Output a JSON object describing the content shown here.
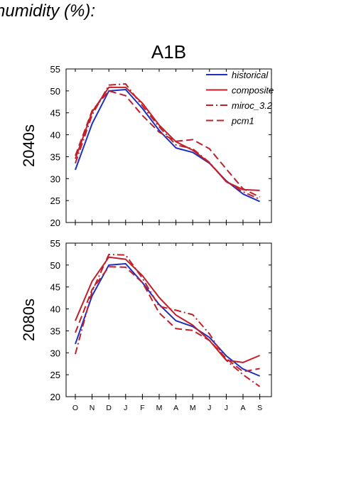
{
  "page": {
    "title": "humidity (%):"
  },
  "chart_data": [
    {
      "type": "line",
      "title": "A1B",
      "ylabel": "2040s",
      "xlabel": "",
      "categories": [
        "O",
        "N",
        "D",
        "J",
        "F",
        "M",
        "A",
        "M",
        "J",
        "J",
        "A",
        "S"
      ],
      "ylim": [
        20,
        55
      ],
      "yticks": [
        20,
        25,
        30,
        35,
        40,
        45,
        50,
        55
      ],
      "legend_position": "top-right",
      "series": [
        {
          "name": "historical",
          "color": "#1f2fbf",
          "dash": "solid",
          "values": [
            32.0,
            42.5,
            50.0,
            50.3,
            46.0,
            41.0,
            37.0,
            36.0,
            33.5,
            29.5,
            26.5,
            24.8
          ]
        },
        {
          "name": "composite",
          "color": "#c0202a",
          "dash": "solid",
          "values": [
            34.5,
            45.2,
            50.8,
            50.8,
            47.2,
            42.2,
            38.4,
            36.5,
            33.6,
            29.3,
            27.5,
            27.3
          ]
        },
        {
          "name": "miroc_3.2",
          "color": "#c0202a",
          "dash": "dashdot",
          "values": [
            33.5,
            44.5,
            51.3,
            51.6,
            46.6,
            41.8,
            37.7,
            36.8,
            33.7,
            29.3,
            27.0,
            25.3
          ]
        },
        {
          "name": "pcm1",
          "color": "#c0202a",
          "dash": "dash",
          "values": [
            35.2,
            45.5,
            50.0,
            48.9,
            44.4,
            40.6,
            38.5,
            38.9,
            36.8,
            32.2,
            27.7,
            25.8
          ]
        }
      ]
    },
    {
      "type": "line",
      "title": "",
      "ylabel": "2080s",
      "xlabel": "",
      "categories": [
        "O",
        "N",
        "D",
        "J",
        "F",
        "M",
        "A",
        "M",
        "J",
        "J",
        "A",
        "S"
      ],
      "ylim": [
        20,
        55
      ],
      "yticks": [
        20,
        25,
        30,
        35,
        40,
        45,
        50,
        55
      ],
      "series": [
        {
          "name": "historical",
          "color": "#1f2fbf",
          "dash": "solid",
          "values": [
            32.0,
            43.0,
            50.0,
            50.3,
            46.0,
            41.0,
            37.3,
            36.0,
            33.5,
            29.3,
            26.3,
            24.7
          ]
        },
        {
          "name": "composite",
          "color": "#c0202a",
          "dash": "solid",
          "values": [
            37.3,
            46.3,
            51.8,
            51.3,
            47.6,
            42.6,
            38.6,
            36.3,
            32.8,
            28.3,
            27.8,
            29.4
          ]
        },
        {
          "name": "miroc_3.2",
          "color": "#c0202a",
          "dash": "dashdot",
          "values": [
            29.7,
            44.0,
            52.4,
            52.3,
            47.0,
            40.6,
            39.7,
            38.7,
            34.3,
            28.3,
            25.0,
            22.3
          ]
        },
        {
          "name": "pcm1",
          "color": "#c0202a",
          "dash": "dash",
          "values": [
            34.6,
            44.4,
            49.6,
            49.5,
            46.0,
            39.1,
            35.5,
            35.1,
            32.8,
            28.7,
            25.7,
            26.4
          ]
        }
      ]
    }
  ]
}
